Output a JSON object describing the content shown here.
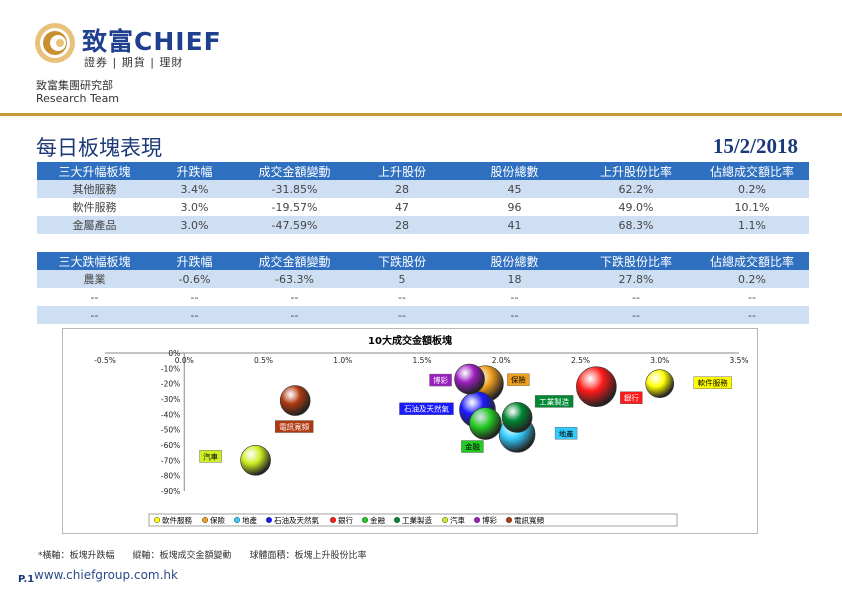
{
  "header": {
    "logo_cn": "致富",
    "logo_en": "CHIEF",
    "logo_sub": "證券 | 期貨 | 理財",
    "dept_cn": "致富集團研究部",
    "dept_en": "Research Team"
  },
  "page": {
    "title": "每日板塊表現",
    "date": "15/2/2018"
  },
  "top_table": {
    "headers": [
      "三大升幅板塊",
      "升跌幅",
      "成交金額變動",
      "上升股份",
      "股份總數",
      "上升股份比率",
      "佔總成交額比率"
    ],
    "rows": [
      [
        "其他服務",
        "3.4%",
        "-31.85%",
        "28",
        "45",
        "62.2%",
        "0.2%"
      ],
      [
        "軟件服務",
        "3.0%",
        "-19.57%",
        "47",
        "96",
        "49.0%",
        "10.1%"
      ],
      [
        "金屬產品",
        "3.0%",
        "-47.59%",
        "28",
        "41",
        "68.3%",
        "1.1%"
      ]
    ]
  },
  "bottom_table": {
    "headers": [
      "三大跌幅板塊",
      "升跌幅",
      "成交金額變動",
      "下跌股份",
      "股份總數",
      "下跌股份比率",
      "佔總成交額比率"
    ],
    "rows": [
      [
        "農業",
        "-0.6%",
        "-63.3%",
        "5",
        "18",
        "27.8%",
        "0.2%"
      ],
      [
        "--",
        "--",
        "--",
        "--",
        "--",
        "--",
        "--"
      ],
      [
        "--",
        "--",
        "--",
        "--",
        "--",
        "--",
        "--"
      ]
    ]
  },
  "chart_data": {
    "type": "scatter",
    "title": "10大成交金額板塊",
    "xlim": [
      -0.5,
      3.5
    ],
    "ylim": [
      -90,
      0
    ],
    "x_ticks": [
      "-0.5%",
      "0.0%",
      "0.5%",
      "1.0%",
      "1.5%",
      "2.0%",
      "2.5%",
      "3.0%",
      "3.5%"
    ],
    "y_ticks": [
      "0%",
      "-10%",
      "-20%",
      "-30%",
      "-40%",
      "-50%",
      "-60%",
      "-70%",
      "-80%",
      "-90%"
    ],
    "legend_position": "bottom",
    "series": [
      {
        "name": "軟件服務",
        "x": 3.0,
        "y": -20,
        "color": "#ffff00"
      },
      {
        "name": "保險",
        "x": 1.9,
        "y": -20,
        "color": "#f0a020"
      },
      {
        "name": "地產",
        "x": 2.1,
        "y": -53,
        "color": "#33ccff"
      },
      {
        "name": "石油及天然氣",
        "x": 1.85,
        "y": -37,
        "color": "#1a1aff"
      },
      {
        "name": "銀行",
        "x": 2.6,
        "y": -22,
        "color": "#ff1a1a"
      },
      {
        "name": "金融",
        "x": 1.9,
        "y": -46,
        "color": "#22cc22"
      },
      {
        "name": "工業製造",
        "x": 2.1,
        "y": -42,
        "color": "#008833"
      },
      {
        "name": "汽車",
        "x": 0.45,
        "y": -70,
        "color": "#ccee22"
      },
      {
        "name": "博彩",
        "x": 1.8,
        "y": -17,
        "color": "#9b1fbf"
      },
      {
        "name": "電訊寬頻",
        "x": 0.7,
        "y": -31,
        "color": "#b03a10"
      }
    ]
  },
  "footnote": "*橫軸：板塊升跌幅　　縱軸：板塊成交金額變動　　球體面積：板塊上升股份比率",
  "footer": {
    "page": "P.1",
    "url": "www.chiefgroup.com.hk"
  }
}
